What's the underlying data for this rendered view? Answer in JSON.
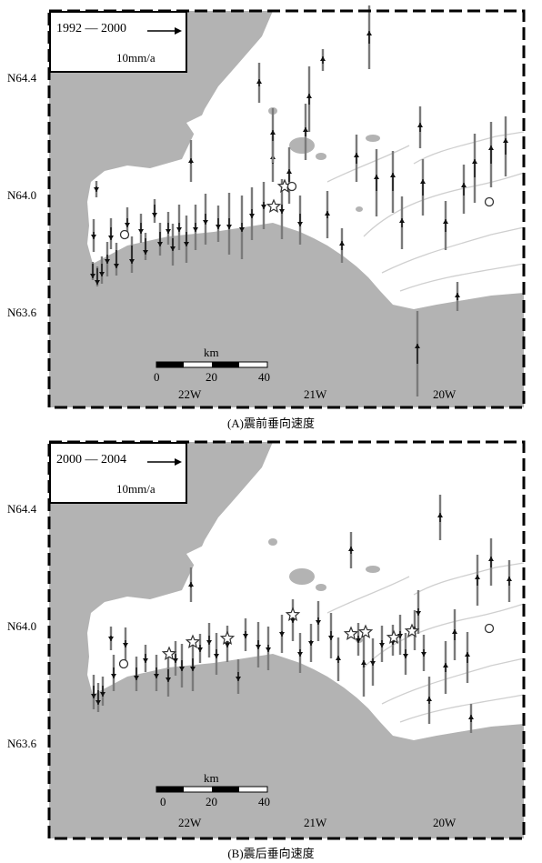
{
  "panels": [
    {
      "id": "a",
      "legend_period": "1992 — 2000",
      "legend_scale": "10mm/a",
      "lat_labels": [
        "N64.4",
        "N64.0",
        "N63.6"
      ],
      "lon_labels": [
        "22W",
        "21W",
        "20W"
      ],
      "scale_title": "km",
      "scale_ticks": [
        "0",
        "20",
        "40"
      ],
      "caption": "(A)震前垂向速度"
    },
    {
      "id": "b",
      "legend_period": "2000 — 2004",
      "legend_scale": "10mm/a",
      "lat_labels": [
        "N64.4",
        "N64.0",
        "N63.6"
      ],
      "lon_labels": [
        "22W",
        "21W",
        "20W"
      ],
      "scale_title": "km",
      "scale_ticks": [
        "0",
        "20",
        "40"
      ],
      "caption": "(B)震后垂向速度"
    }
  ],
  "colors": {
    "sea": "#b3b3b3",
    "land": "#ffffff",
    "rivers": "#cfcfcf",
    "arrows": "#111111",
    "error_bars": "#7a7a7a",
    "frame": "#000000"
  },
  "symbols": {
    "arrow": "arrow-up-icon",
    "earthquake": "star-icon",
    "station": "circle-icon"
  }
}
